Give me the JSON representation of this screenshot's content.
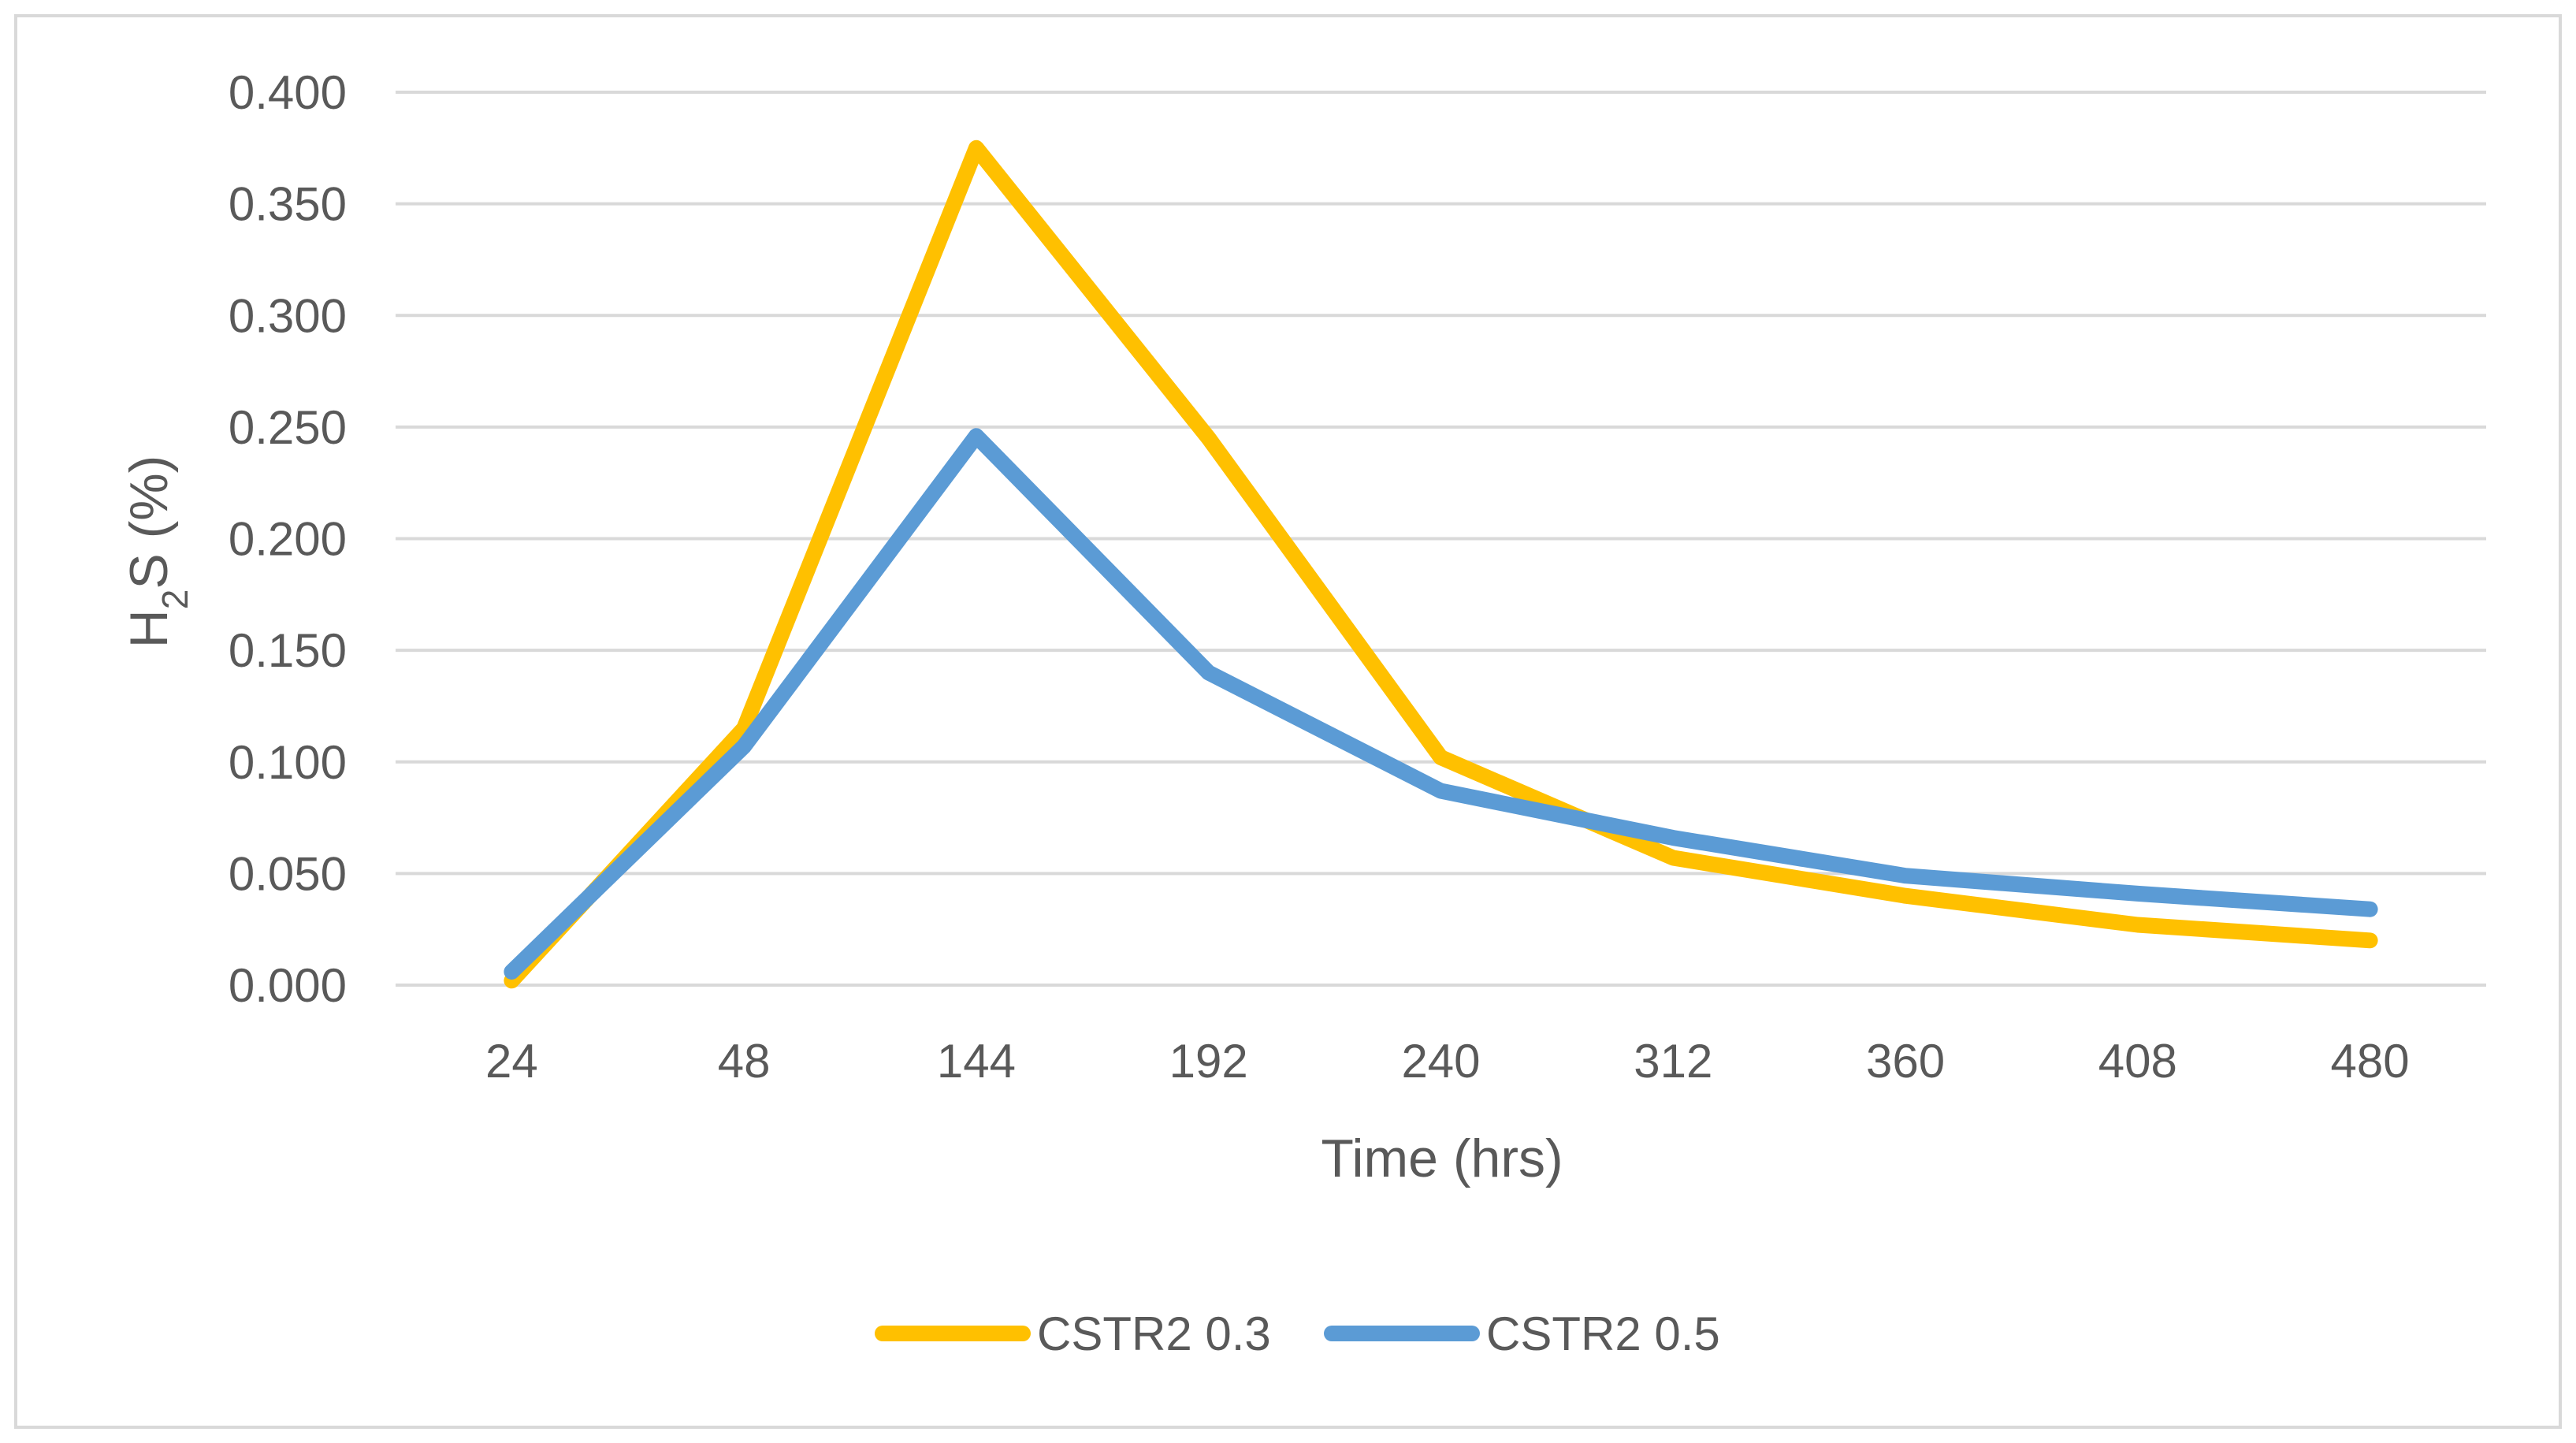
{
  "chart_data": {
    "type": "line",
    "title": "",
    "xlabel": "Time (hrs)",
    "ylabel": {
      "base": "H",
      "subscript": "2",
      "rest": "S (%)"
    },
    "categories": [
      "24",
      "48",
      "144",
      "192",
      "240",
      "312",
      "360",
      "408",
      "480"
    ],
    "ylim": [
      0,
      0.4
    ],
    "yticks": [
      "0.000",
      "0.050",
      "0.100",
      "0.150",
      "0.200",
      "0.250",
      "0.300",
      "0.350",
      "0.400"
    ],
    "grid": true,
    "legend_position": "bottom",
    "series": [
      {
        "name": "CSTR2 0.3",
        "color": "#FFC000",
        "values": [
          0.002,
          0.115,
          0.375,
          0.245,
          0.102,
          0.057,
          0.04,
          0.027,
          0.02
        ]
      },
      {
        "name": "CSTR2 0.5",
        "color": "#5B9BD5",
        "values": [
          0.006,
          0.107,
          0.246,
          0.14,
          0.087,
          0.066,
          0.049,
          0.041,
          0.034
        ]
      }
    ]
  }
}
